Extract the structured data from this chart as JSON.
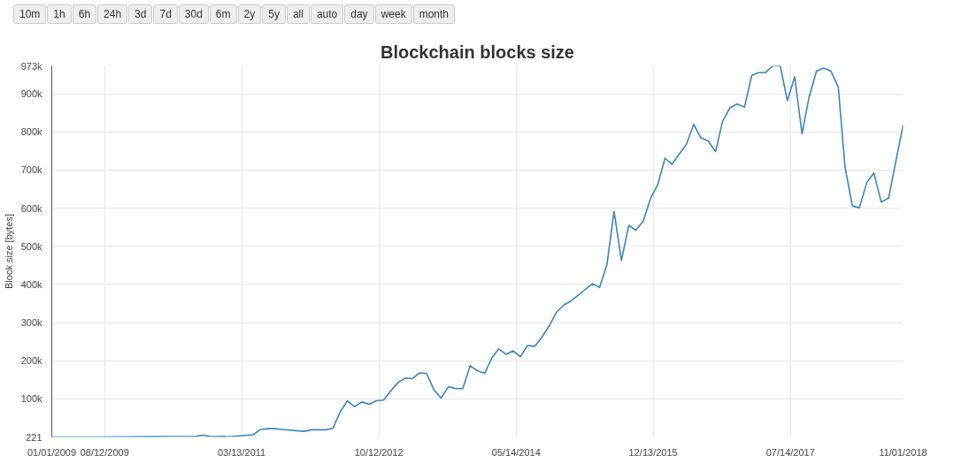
{
  "chart_data": {
    "type": "line",
    "title": "Blockchain blocks size",
    "ylabel": "Block size [bytes]",
    "annotations": [
      "10m",
      "1h",
      "6h",
      "24h",
      "3d",
      "7d",
      "30d",
      "6m",
      "2y",
      "5y",
      "all",
      "auto",
      "day",
      "week",
      "month"
    ],
    "x": [
      "2009-01-01",
      "2009-08-01",
      "2010-03-01",
      "2010-09-01",
      "2010-10-01",
      "2010-11-01",
      "2010-12-01",
      "2011-02-01",
      "2011-03-01",
      "2011-05-01",
      "2011-06-01",
      "2011-07-01",
      "2011-08-01",
      "2011-09-01",
      "2011-12-01",
      "2012-01-01",
      "2012-03-01",
      "2012-04-01",
      "2012-05-01",
      "2012-06-01",
      "2012-07-01",
      "2012-08-01",
      "2012-09-01",
      "2012-10-01",
      "2012-11-01",
      "2012-12-01",
      "2013-01-01",
      "2013-02-01",
      "2013-03-01",
      "2013-04-01",
      "2013-05-01",
      "2013-06-01",
      "2013-07-01",
      "2013-08-01",
      "2013-09-01",
      "2013-10-01",
      "2013-11-01",
      "2013-12-01",
      "2014-01-01",
      "2014-02-01",
      "2014-03-01",
      "2014-04-01",
      "2014-05-01",
      "2014-06-01",
      "2014-07-01",
      "2014-08-01",
      "2014-09-01",
      "2014-10-01",
      "2014-11-01",
      "2014-12-01",
      "2015-01-01",
      "2015-02-01",
      "2015-03-01",
      "2015-04-01",
      "2015-05-01",
      "2015-06-01",
      "2015-07-01",
      "2015-08-01",
      "2015-09-01",
      "2015-10-01",
      "2015-11-01",
      "2015-12-01",
      "2016-01-01",
      "2016-02-01",
      "2016-03-01",
      "2016-04-01",
      "2016-05-01",
      "2016-06-01",
      "2016-07-01",
      "2016-08-01",
      "2016-09-01",
      "2016-10-01",
      "2016-11-01",
      "2016-12-01",
      "2017-01-01",
      "2017-02-01",
      "2017-03-01",
      "2017-04-01",
      "2017-05-01",
      "2017-06-01",
      "2017-07-01",
      "2017-08-01",
      "2017-09-01",
      "2017-10-01",
      "2017-11-01",
      "2017-12-01",
      "2018-01-01",
      "2018-02-01",
      "2018-03-01",
      "2018-04-01",
      "2018-05-01",
      "2018-06-01",
      "2018-07-01",
      "2018-08-01",
      "2018-09-01",
      "2018-10-01",
      "2018-11-01"
    ],
    "series": [
      {
        "color": "#3a85c0",
        "values": [
          221,
          221,
          1000,
          2000,
          5000,
          2000,
          1000,
          2000,
          3000,
          6000,
          20000,
          22000,
          22000,
          20000,
          15000,
          19000,
          19000,
          23000,
          65000,
          95000,
          80000,
          92000,
          86000,
          95000,
          97000,
          121000,
          143000,
          155000,
          153000,
          168000,
          167000,
          124000,
          102000,
          132000,
          127000,
          127000,
          187000,
          174000,
          167000,
          208000,
          231000,
          217000,
          226000,
          211000,
          240000,
          238000,
          263000,
          292000,
          328000,
          346000,
          357000,
          372000,
          387000,
          402000,
          392000,
          452000,
          592000,
          463000,
          555000,
          542000,
          566000,
          624000,
          661000,
          731000,
          715000,
          742000,
          767000,
          820000,
          784000,
          776000,
          748000,
          828000,
          863000,
          873000,
          865000,
          948000,
          955000,
          956000,
          973000,
          973000,
          882000,
          944000,
          795000,
          892000,
          959000,
          967000,
          959000,
          917000,
          709000,
          606000,
          601000,
          667000,
          692000,
          616000,
          626000,
          721000,
          817000
        ]
      }
    ],
    "xlim": [
      "2009-01-01",
      "2018-11-01"
    ],
    "xticks": [
      {
        "value": "2009-01-01",
        "label": "01/01/2009"
      },
      {
        "value": "2009-08-12",
        "label": "08/12/2009"
      },
      {
        "value": "2011-03-13",
        "label": "03/13/2011"
      },
      {
        "value": "2012-10-12",
        "label": "10/12/2012"
      },
      {
        "value": "2014-05-14",
        "label": "05/14/2014"
      },
      {
        "value": "2015-12-13",
        "label": "12/13/2015"
      },
      {
        "value": "2017-07-14",
        "label": "07/14/2017"
      },
      {
        "value": "2018-11-01",
        "label": "11/01/2018"
      }
    ],
    "ylim": [
      221,
      973000
    ],
    "yticks": [
      221,
      {
        "value": 100000,
        "label": "100k"
      },
      {
        "value": 200000,
        "label": "200k"
      },
      {
        "value": 300000,
        "label": "300k"
      },
      {
        "value": 400000,
        "label": "400k"
      },
      {
        "value": 500000,
        "label": "500k"
      },
      {
        "value": 600000,
        "label": "600k"
      },
      {
        "value": 700000,
        "label": "700k"
      },
      {
        "value": 800000,
        "label": "800k"
      },
      {
        "value": 900000,
        "label": "900k"
      },
      {
        "value": 973000,
        "label": "973k"
      }
    ],
    "grid": true,
    "marker": "none",
    "line_style": "solid"
  }
}
